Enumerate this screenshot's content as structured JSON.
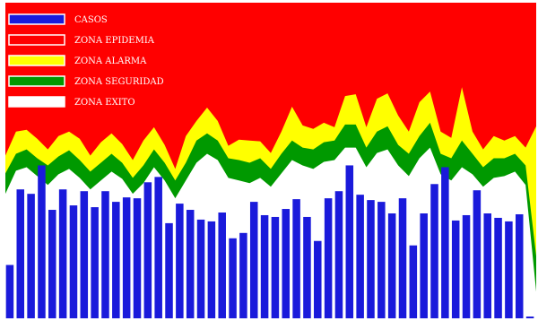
{
  "chart_data": {
    "type": "area",
    "title": "",
    "xlabel": "",
    "ylabel": "",
    "ylim": [
      0,
      355
    ],
    "grid": false,
    "legend_position": "top-left",
    "colors": {
      "casos": "#1a1adb",
      "epidemia": "#ff0000",
      "alarma": "#ffff00",
      "seguridad": "#009900",
      "exito": "#ffffff"
    },
    "series": [
      {
        "name": "CASOS",
        "style": "bar",
        "values": [
          60,
          145,
          140,
          172,
          122,
          145,
          127,
          143,
          125,
          143,
          131,
          136,
          135,
          153,
          159,
          107,
          129,
          122,
          111,
          109,
          119,
          90,
          96,
          131,
          116,
          114,
          123,
          134,
          114,
          87,
          135,
          143,
          172,
          139,
          133,
          131,
          118,
          135,
          82,
          118,
          151,
          170,
          110,
          116,
          144,
          118,
          113,
          109,
          117,
          2
        ]
      },
      {
        "name": "ZONA EPIDEMIA",
        "style": "area",
        "values": [
          355,
          355,
          355,
          355,
          355,
          355,
          355,
          355,
          355,
          355,
          355,
          355,
          355,
          355,
          355,
          355,
          355,
          355,
          355,
          355,
          355,
          355,
          355,
          355,
          355,
          355,
          355,
          355,
          355,
          355,
          355,
          355,
          355,
          355,
          355,
          355,
          355,
          355,
          355,
          355,
          355,
          355,
          355,
          355,
          355,
          355,
          355,
          355,
          355,
          355,
          355
        ]
      },
      {
        "name": "ZONA ALARMA",
        "style": "area",
        "values": [
          183,
          210,
          212,
          202,
          190,
          205,
          210,
          202,
          183,
          198,
          208,
          196,
          178,
          200,
          215,
          195,
          168,
          205,
          222,
          237,
          222,
          194,
          201,
          200,
          199,
          186,
          210,
          238,
          217,
          213,
          220,
          215,
          250,
          252,
          215,
          247,
          253,
          228,
          210,
          243,
          255,
          210,
          203,
          260,
          210,
          190,
          205,
          200,
          205,
          192,
          216
        ]
      },
      {
        "name": "ZONA SEGURIDAD",
        "style": "area",
        "values": [
          163,
          185,
          190,
          180,
          172,
          182,
          189,
          178,
          165,
          175,
          185,
          175,
          158,
          172,
          190,
          175,
          155,
          175,
          200,
          208,
          200,
          180,
          178,
          175,
          180,
          168,
          185,
          200,
          192,
          190,
          198,
          200,
          218,
          218,
          192,
          210,
          216,
          195,
          185,
          205,
          220,
          185,
          180,
          200,
          185,
          170,
          180,
          180,
          185,
          172,
          70
        ]
      },
      {
        "name": "ZONA EXITO",
        "style": "area",
        "values": [
          140,
          166,
          170,
          160,
          150,
          162,
          168,
          158,
          145,
          155,
          165,
          157,
          140,
          152,
          170,
          155,
          135,
          155,
          175,
          185,
          178,
          158,
          155,
          152,
          158,
          148,
          163,
          178,
          172,
          168,
          176,
          178,
          192,
          192,
          170,
          186,
          190,
          172,
          160,
          180,
          192,
          162,
          155,
          170,
          162,
          148,
          158,
          160,
          165,
          150,
          30
        ]
      }
    ],
    "legend": [
      {
        "label": "CASOS",
        "swatch": "casos"
      },
      {
        "label": "ZONA EPIDEMIA",
        "swatch": "epidemia"
      },
      {
        "label": "ZONA ALARMA",
        "swatch": "alarma"
      },
      {
        "label": "ZONA SEGURIDAD",
        "swatch": "seguridad"
      },
      {
        "label": "ZONA EXITO",
        "swatch": "exito"
      }
    ]
  }
}
